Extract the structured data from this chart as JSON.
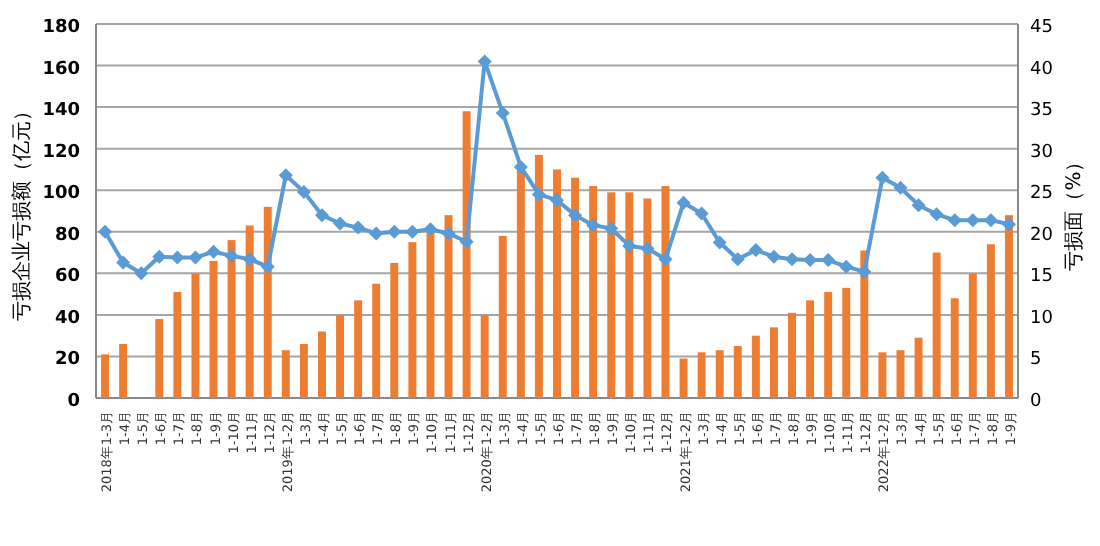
{
  "chart_data": {
    "type": "bar",
    "ylabel": "亏损企业亏损额（亿元）",
    "y2label": "亏损面（%）",
    "categories": [
      "2018年1-3月",
      "1-4月",
      "1-5月",
      "1-6月",
      "1-7月",
      "1-8月",
      "1-9月",
      "1-10月",
      "1-11月",
      "1-12月",
      "2019年1-2月",
      "1-3月",
      "1-4月",
      "1-5月",
      "1-6月",
      "1-7月",
      "1-8月",
      "1-9月",
      "1-10月",
      "1-11月",
      "1-12月",
      "2020年1-2月",
      "1-3月",
      "1-4月",
      "1-5月",
      "1-6月",
      "1-7月",
      "1-8月",
      "1-9月",
      "1-10月",
      "1-11月",
      "1-12月",
      "2021年1-2月",
      "1-3月",
      "1-4月",
      "1-5月",
      "1-6月",
      "1-7月",
      "1-8月",
      "1-9月",
      "1-10月",
      "1-11月",
      "1-12月",
      "2022年1-2月",
      "1-3月",
      "1-4月",
      "1-5月",
      "1-6月",
      "1-7月",
      "1-8月",
      "1-9月"
    ],
    "series": [
      {
        "color": "#ed7d31",
        "values": [
          21,
          26,
          null,
          38,
          51,
          60,
          66,
          76,
          83,
          92,
          23,
          26,
          32,
          40,
          47,
          55,
          65,
          75,
          81,
          88,
          138,
          40,
          78,
          110,
          117,
          110,
          106,
          102,
          99,
          99,
          96,
          102,
          19,
          22,
          23,
          25,
          30,
          34,
          41,
          47,
          51,
          53,
          71,
          22,
          23,
          29,
          70,
          48,
          60,
          74,
          88
        ]
      },
      {
        "type": "line",
        "axis": "y2",
        "color": "#5b9bd5",
        "marker": "diamond",
        "values": [
          20,
          16.3,
          15,
          17,
          16.9,
          16.9,
          17.6,
          17.1,
          16.7,
          15.8,
          26.8,
          24.8,
          22,
          21,
          20.5,
          19.8,
          20,
          20,
          20.3,
          19.8,
          18.8,
          40.5,
          34.3,
          27.8,
          24.5,
          23.8,
          22,
          20.8,
          20.4,
          18.3,
          18,
          16.7,
          23.5,
          22.2,
          18.7,
          16.7,
          17.8,
          17,
          16.7,
          16.6,
          16.6,
          15.8,
          15.2,
          26.5,
          25.3,
          23.2,
          22.1,
          21.4,
          21.4,
          21.4,
          20.9
        ]
      }
    ],
    "ylim": [
      0,
      180
    ],
    "yticks": [
      0,
      20,
      40,
      60,
      80,
      100,
      120,
      140,
      160,
      180
    ],
    "y2lim": [
      0,
      45
    ],
    "y2ticks": [
      0,
      5,
      10,
      15,
      20,
      25,
      30,
      35,
      40,
      45
    ],
    "grid": "y"
  }
}
